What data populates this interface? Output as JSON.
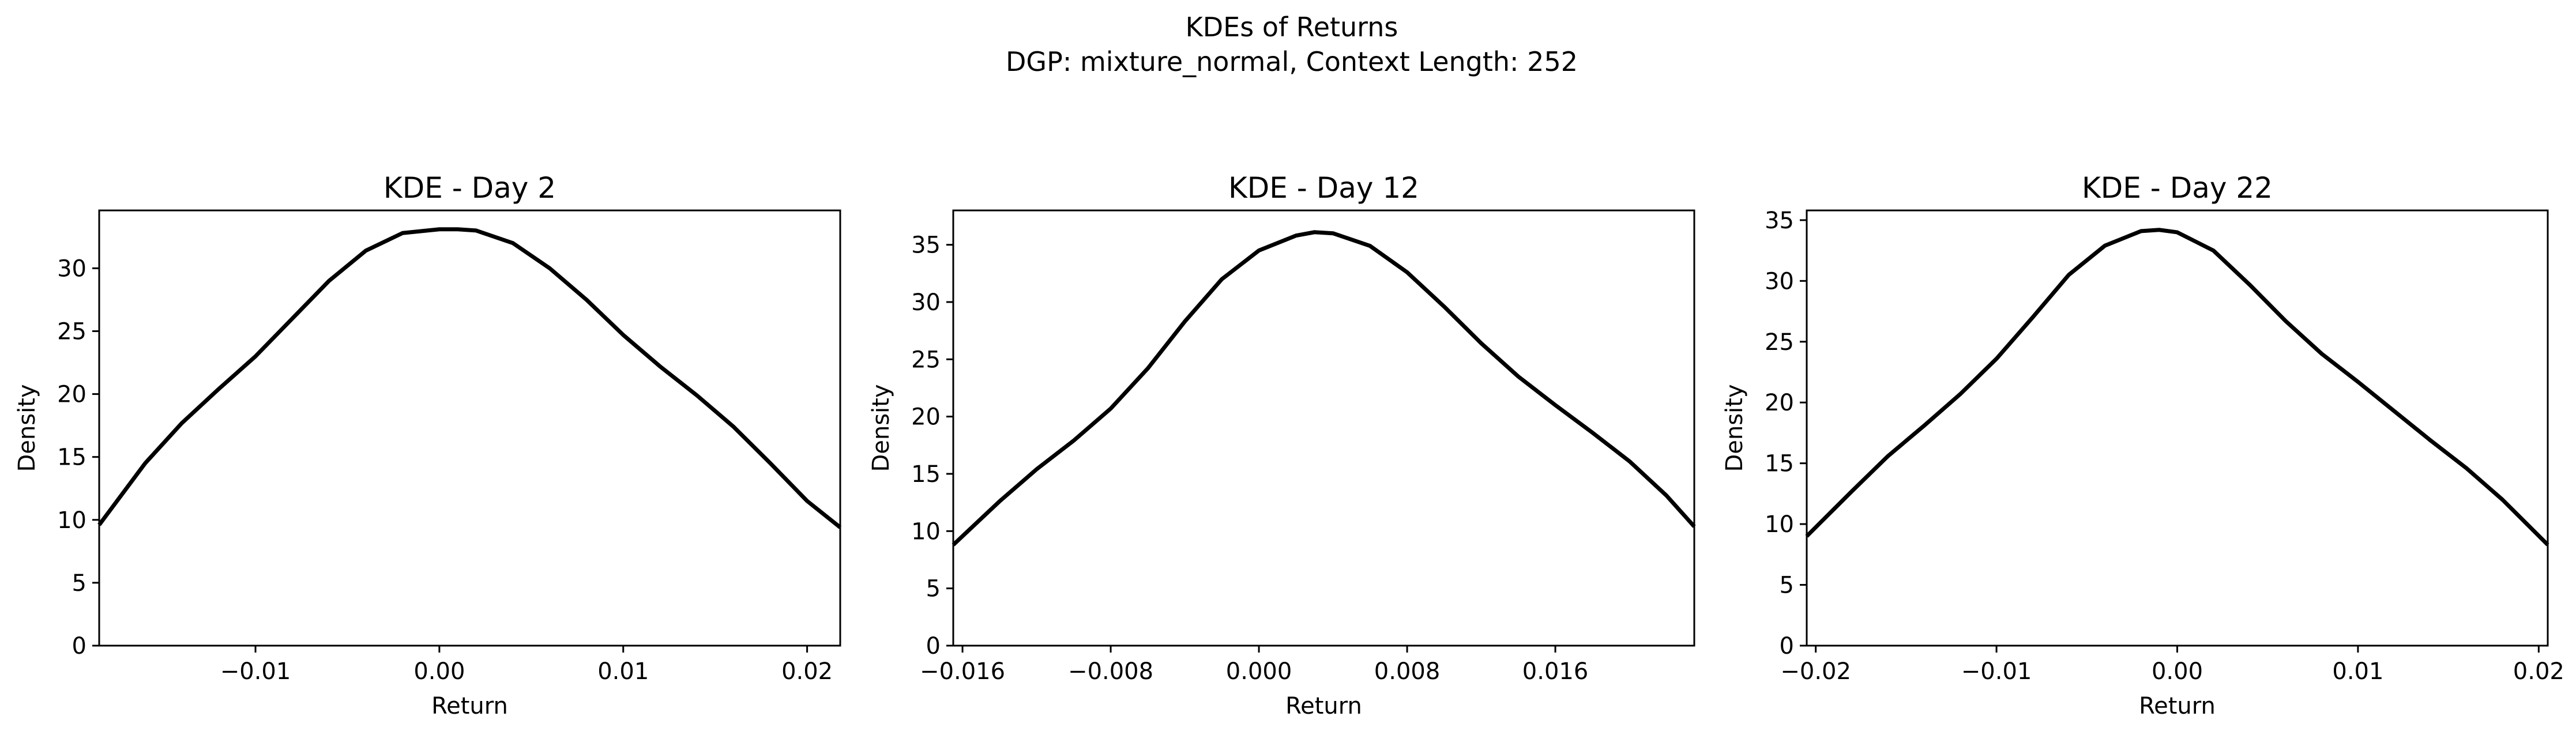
{
  "figure": {
    "title_line1": "KDEs of Returns",
    "title_line2": "DGP: mixture_normal, Context Length: 252"
  },
  "colors": {
    "line": "#000000",
    "axes": "#000000",
    "background": "#ffffff"
  },
  "chart_data": [
    {
      "type": "line",
      "title": "KDE - Day 2",
      "xlabel": "Return",
      "ylabel": "Density",
      "xlim": [
        -0.0185,
        0.0218
      ],
      "ylim": [
        0,
        34.6
      ],
      "xticks": [
        -0.01,
        0.0,
        0.01,
        0.02
      ],
      "xtick_labels": [
        "−0.01",
        "0.00",
        "0.01",
        "0.02"
      ],
      "yticks": [
        0,
        5,
        10,
        15,
        20,
        25,
        30
      ],
      "ytick_labels": [
        "0",
        "5",
        "10",
        "15",
        "20",
        "25",
        "30"
      ],
      "grid": false,
      "series": [
        {
          "x": [
            -0.0185,
            -0.016,
            -0.014,
            -0.012,
            -0.01,
            -0.008,
            -0.006,
            -0.004,
            -0.002,
            0.0,
            0.001,
            0.002,
            0.004,
            0.006,
            0.008,
            0.01,
            0.012,
            0.014,
            0.016,
            0.018,
            0.02,
            0.0218
          ],
          "y": [
            9.6,
            14.5,
            17.7,
            20.4,
            23.0,
            26.0,
            29.0,
            31.4,
            32.8,
            33.1,
            33.1,
            33.0,
            32.0,
            30.0,
            27.5,
            24.7,
            22.2,
            19.9,
            17.4,
            14.5,
            11.5,
            9.4
          ]
        }
      ]
    },
    {
      "type": "line",
      "title": "KDE - Day 12",
      "xlabel": "Return",
      "ylabel": "Density",
      "xlim": [
        -0.0165,
        0.0235
      ],
      "ylim": [
        0,
        38.0
      ],
      "xticks": [
        -0.016,
        -0.008,
        0.0,
        0.008,
        0.016
      ],
      "xtick_labels": [
        "−0.016",
        "−0.008",
        "0.000",
        "0.008",
        "0.016"
      ],
      "yticks": [
        0,
        5,
        10,
        15,
        20,
        25,
        30,
        35
      ],
      "ytick_labels": [
        "0",
        "5",
        "10",
        "15",
        "20",
        "25",
        "30",
        "35"
      ],
      "grid": false,
      "series": [
        {
          "x": [
            -0.0165,
            -0.014,
            -0.012,
            -0.01,
            -0.008,
            -0.006,
            -0.004,
            -0.002,
            0.0,
            0.002,
            0.003,
            0.004,
            0.006,
            0.008,
            0.01,
            0.012,
            0.014,
            0.016,
            0.018,
            0.02,
            0.022,
            0.0235
          ],
          "y": [
            8.8,
            12.6,
            15.4,
            17.9,
            20.7,
            24.2,
            28.3,
            32.0,
            34.5,
            35.8,
            36.1,
            36.0,
            34.9,
            32.6,
            29.6,
            26.4,
            23.5,
            21.0,
            18.6,
            16.1,
            13.1,
            10.4
          ]
        }
      ]
    },
    {
      "type": "line",
      "title": "KDE - Day 22",
      "xlabel": "Return",
      "ylabel": "Density",
      "xlim": [
        -0.0205,
        0.0205
      ],
      "ylim": [
        0,
        35.8
      ],
      "xticks": [
        -0.02,
        -0.01,
        0.0,
        0.01,
        0.02
      ],
      "xtick_labels": [
        "−0.02",
        "−0.01",
        "0.00",
        "0.01",
        "0.02"
      ],
      "yticks": [
        0,
        5,
        10,
        15,
        20,
        25,
        30,
        35
      ],
      "ytick_labels": [
        "0",
        "5",
        "10",
        "15",
        "20",
        "25",
        "30",
        "35"
      ],
      "grid": false,
      "series": [
        {
          "x": [
            -0.0205,
            -0.018,
            -0.016,
            -0.014,
            -0.012,
            -0.01,
            -0.008,
            -0.006,
            -0.004,
            -0.002,
            -0.001,
            0.0,
            0.002,
            0.004,
            0.006,
            0.008,
            0.01,
            0.012,
            0.014,
            0.016,
            0.018,
            0.0205
          ],
          "y": [
            9.0,
            12.7,
            15.6,
            18.1,
            20.7,
            23.6,
            27.0,
            30.5,
            32.9,
            34.1,
            34.2,
            34.0,
            32.5,
            29.7,
            26.7,
            24.0,
            21.7,
            19.3,
            16.9,
            14.6,
            12.0,
            8.3
          ]
        }
      ]
    }
  ]
}
